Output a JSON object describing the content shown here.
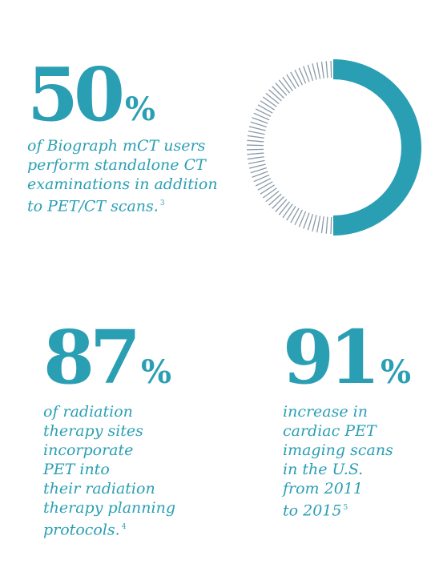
{
  "colors": {
    "accent": "#2a9fb4",
    "tick": "#8a9aa8"
  },
  "stats": [
    {
      "value": "50",
      "unit": "%",
      "lines": [
        "of Biograph mCT users",
        "perform standalone CT",
        "examinations in addition",
        "to PET/CT scans."
      ],
      "footnote": "3"
    },
    {
      "value": "87",
      "unit": "%",
      "lines": [
        "of radiation",
        "therapy sites",
        "incorporate",
        "PET into",
        "their radiation",
        "therapy planning",
        "protocols."
      ],
      "footnote": "4"
    },
    {
      "value": "91",
      "unit": "%",
      "lines": [
        "increase in",
        "cardiac PET",
        "imaging scans",
        "in the U.S.",
        "from 2011",
        "to 2015"
      ],
      "footnote": "5"
    }
  ],
  "donut": {
    "filled_fraction": 0.5
  }
}
